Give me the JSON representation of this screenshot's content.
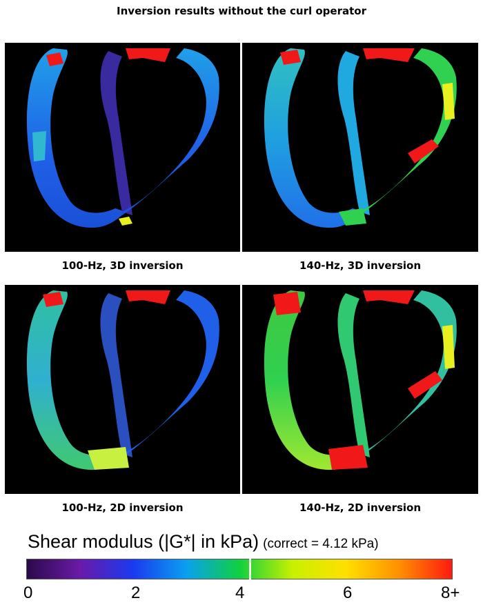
{
  "title": "Inversion results without the curl operator",
  "panels": [
    {
      "caption": "100-Hz, 3D inversion"
    },
    {
      "caption": "140-Hz, 3D inversion"
    },
    {
      "caption": "100-Hz, 2D inversion"
    },
    {
      "caption": "140-Hz, 2D inversion"
    }
  ],
  "legend": {
    "title": "Shear modulus (|G*| in kPa)",
    "note": "(correct = 4.12 kPa)",
    "ticks": [
      "0",
      "2",
      "4",
      "6",
      "8+"
    ],
    "correct_value": 4.12,
    "colormap": [
      "#2a0a4a",
      "#6a1aa8",
      "#1a3af0",
      "#0aa0f0",
      "#10d040",
      "#c8f000",
      "#ffe000",
      "#ff9000",
      "#ff1a10"
    ]
  },
  "colors": {
    "low": "#3a1a8a",
    "blue": "#2060e8",
    "cyan": "#20a8e0",
    "green": "#30d050",
    "yellow": "#e8f020",
    "red": "#f01818"
  }
}
